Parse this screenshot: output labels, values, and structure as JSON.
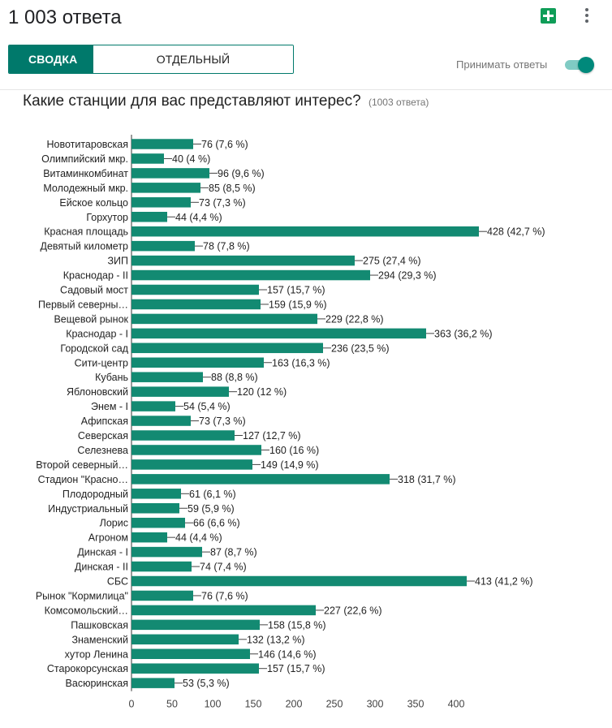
{
  "header": {
    "title": "1 003 ответа",
    "tab_summary": "СВОДКА",
    "tab_individual": "ОТДЕЛЬНЫЙ ПОЛЬЗОВАТЕЛЬ",
    "accept_label": "Принимать ответы",
    "accepting": true
  },
  "question": {
    "text": "Какие станции для вас представляют интерес?",
    "count": "(1003 ответа)"
  },
  "colors": {
    "accent": "#00796b",
    "bar": "#138a72"
  },
  "chart_data": {
    "type": "bar",
    "orientation": "horizontal",
    "categories": [
      "Новотитаровская",
      "Олимпийский мкр.",
      "Витаминкомбинат",
      "Молодежный мкр.",
      "Ейское кольцо",
      "Горхутор",
      "Красная площадь",
      "Девятый километр",
      "ЗИП",
      "Краснодар - II",
      "Садовый мост",
      "Первый северны…",
      "Вещевой рынок",
      "Краснодар - I",
      "Городской сад",
      "Сити-центр",
      "Кубань",
      "Яблоновский",
      "Энем - I",
      "Афипская",
      "Северская",
      "Селезнева",
      "Второй северный…",
      "Стадион \"Красно…",
      "Плодородный",
      "Индустриальный",
      "Лорис",
      "Агроном",
      "Динская - I",
      "Динская - II",
      "СБС",
      "Рынок \"Кормилица\"",
      "Комсомольский…",
      "Пашковская",
      "Знаменский",
      "хутор Ленина",
      "Старокорсунская",
      "Васюринская"
    ],
    "values": [
      76,
      40,
      96,
      85,
      73,
      44,
      428,
      78,
      275,
      294,
      157,
      159,
      229,
      363,
      236,
      163,
      88,
      120,
      54,
      73,
      127,
      160,
      149,
      318,
      61,
      59,
      66,
      44,
      87,
      74,
      413,
      76,
      227,
      158,
      132,
      146,
      157,
      53
    ],
    "data_labels": [
      "76 (7,6 %)",
      "40 (4 %)",
      "96 (9,6 %)",
      "85 (8,5 %)",
      "73 (7,3 %)",
      "44 (4,4 %)",
      "428 (42,7 %)",
      "78 (7,8 %)",
      "275 (27,4 %)",
      "294 (29,3 %)",
      "157 (15,7 %)",
      "159 (15,9 %)",
      "229 (22,8 %)",
      "363 (36,2 %)",
      "236 (23,5 %)",
      "163 (16,3 %)",
      "88 (8,8 %)",
      "120 (12 %)",
      "54 (5,4 %)",
      "73 (7,3 %)",
      "127 (12,7 %)",
      "160 (16 %)",
      "149 (14,9 %)",
      "318 (31,7 %)",
      "61 (6,1 %)",
      "59 (5,9 %)",
      "66 (6,6 %)",
      "44 (4,4 %)",
      "87 (8,7 %)",
      "74 (7,4 %)",
      "413 (41,2 %)",
      "76 (7,6 %)",
      "227 (22,6 %)",
      "158 (15,8 %)",
      "132 (13,2 %)",
      "146 (14,6 %)",
      "157 (15,7 %)",
      "53 (5,3 %)"
    ],
    "xticks": [
      0,
      50,
      100,
      150,
      200,
      250,
      300,
      350,
      400
    ],
    "xlim": [
      0,
      428
    ],
    "grid": false,
    "title": "",
    "xlabel": "",
    "ylabel": ""
  }
}
